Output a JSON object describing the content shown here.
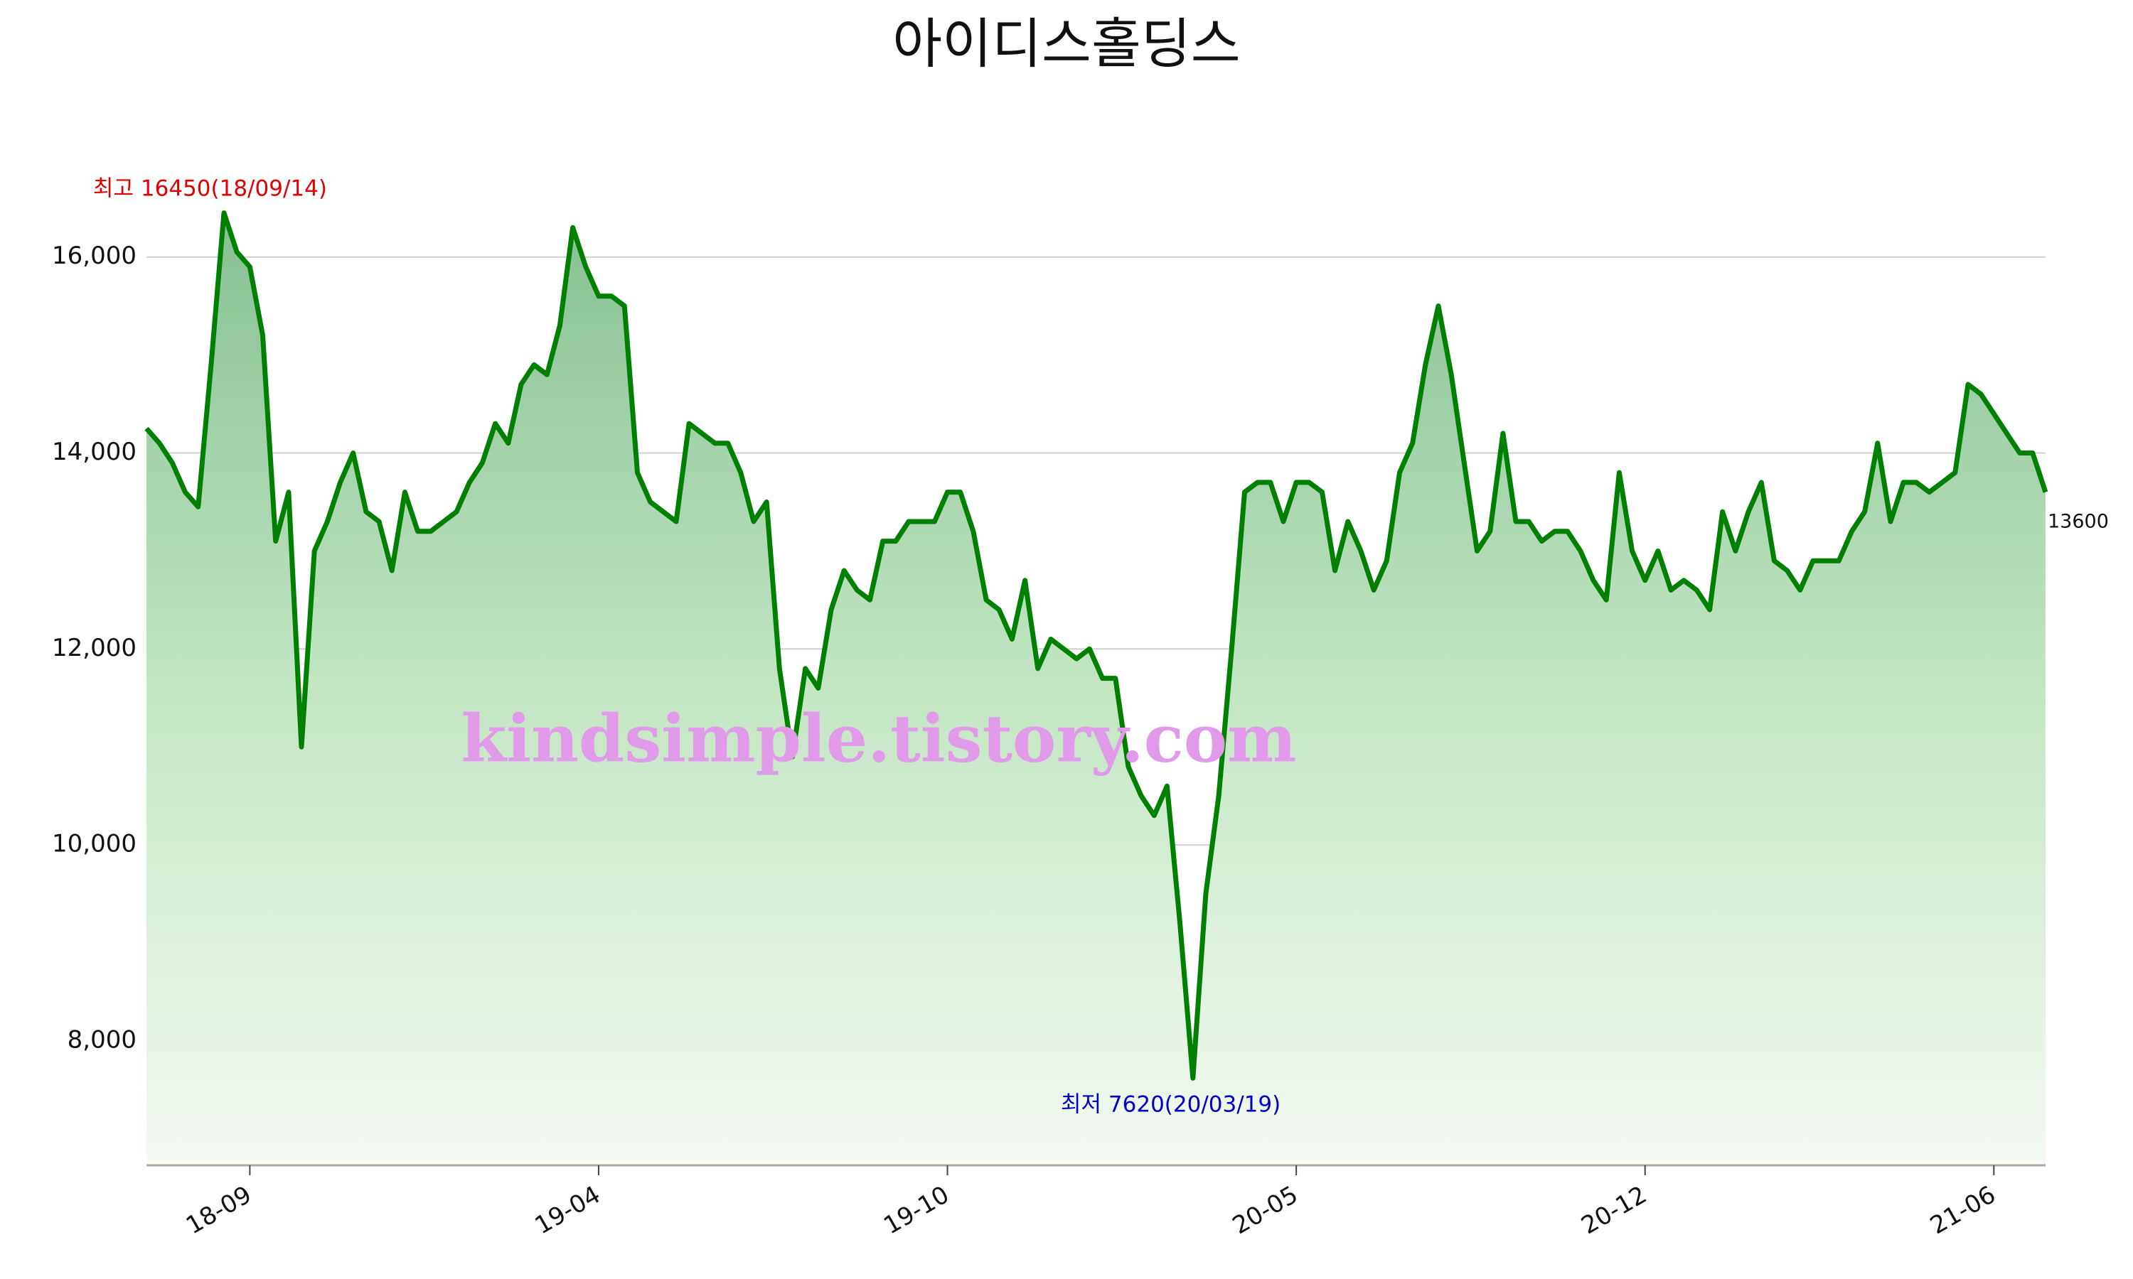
{
  "chart_data": {
    "type": "line",
    "title": "아이디스홀딩스",
    "categories": [
      null,
      null,
      null,
      null,
      null,
      null,
      null,
      null,
      "18-09",
      null,
      null,
      null,
      null,
      null,
      null,
      null,
      null,
      null,
      null,
      null,
      null,
      null,
      null,
      null,
      null,
      null,
      null,
      null,
      null,
      null,
      null,
      null,
      null,
      null,
      null,
      "19-04",
      null,
      null,
      null,
      null,
      null,
      null,
      null,
      null,
      null,
      null,
      null,
      null,
      null,
      null,
      null,
      null,
      null,
      null,
      null,
      null,
      null,
      null,
      null,
      null,
      null,
      null,
      "19-10",
      null,
      null,
      null,
      null,
      null,
      null,
      null,
      null,
      null,
      null,
      null,
      null,
      null,
      null,
      null,
      null,
      null,
      null,
      null,
      null,
      null,
      null,
      null,
      null,
      null,
      null,
      "20-05",
      null,
      null,
      null,
      null,
      null,
      null,
      null,
      null,
      null,
      null,
      null,
      null,
      null,
      null,
      null,
      null,
      null,
      null,
      null,
      null,
      null,
      null,
      null,
      null,
      null,
      null,
      "20-12",
      null,
      null,
      null,
      null,
      null,
      null,
      null,
      null,
      null,
      null,
      null,
      null,
      null,
      null,
      null,
      null,
      null,
      null,
      null,
      null,
      null,
      null,
      null,
      null,
      null,
      null,
      "21-06",
      null,
      null,
      null,
      null
    ],
    "series": [
      {
        "name": "아이디스홀딩스",
        "color": "#008000",
        "values": [
          14250,
          14100,
          13900,
          13600,
          13450,
          14900,
          16450,
          16050,
          15900,
          15200,
          13100,
          13600,
          11000,
          13000,
          13300,
          13700,
          14000,
          13400,
          13300,
          12800,
          13600,
          13200,
          13200,
          13300,
          13400,
          13700,
          13900,
          14300,
          14100,
          14700,
          14900,
          14800,
          15300,
          16300,
          15900,
          15600,
          15600,
          15500,
          13800,
          13500,
          13400,
          13300,
          14300,
          14200,
          14100,
          14100,
          13800,
          13300,
          13500,
          11800,
          10900,
          11800,
          11600,
          12400,
          12800,
          12600,
          12500,
          13100,
          13100,
          13300,
          13300,
          13300,
          13600,
          13600,
          13200,
          12500,
          12400,
          12100,
          12700,
          11800,
          12100,
          12000,
          11900,
          12000,
          11700,
          11700,
          10800,
          10500,
          10300,
          10600,
          9200,
          7620,
          9500,
          10500,
          12000,
          13600,
          13700,
          13700,
          13300,
          13700,
          13700,
          13600,
          12800,
          13300,
          13000,
          12600,
          12900,
          13800,
          14100,
          14900,
          15500,
          14800,
          13900,
          13000,
          13200,
          14200,
          13300,
          13300,
          13100,
          13200,
          13200,
          13000,
          12700,
          12500,
          13800,
          13000,
          12700,
          13000,
          12600,
          12700,
          12600,
          12400,
          13400,
          13000,
          13400,
          13700,
          12900,
          12800,
          12600,
          12900,
          12900,
          12900,
          13200,
          13400,
          14100,
          13300,
          13700,
          13700,
          13600,
          13700,
          13800,
          14700,
          14600,
          14400,
          14200,
          14000,
          14000,
          13600
        ]
      }
    ],
    "ylim": [
      6730,
      17100
    ],
    "yticks": [
      {
        "value": 8000,
        "label": "8,000"
      },
      {
        "value": 10000,
        "label": "10,000"
      },
      {
        "value": 12000,
        "label": "12,000"
      },
      {
        "value": 14000,
        "label": "14,000"
      },
      {
        "value": 16000,
        "label": "16,000"
      }
    ],
    "grid": true,
    "annotations": {
      "high": "최고 16450(18/09/14)",
      "low": "최저 7620(20/03/19)",
      "last": "13600"
    },
    "watermark": "kindsimple.tistory.com"
  }
}
